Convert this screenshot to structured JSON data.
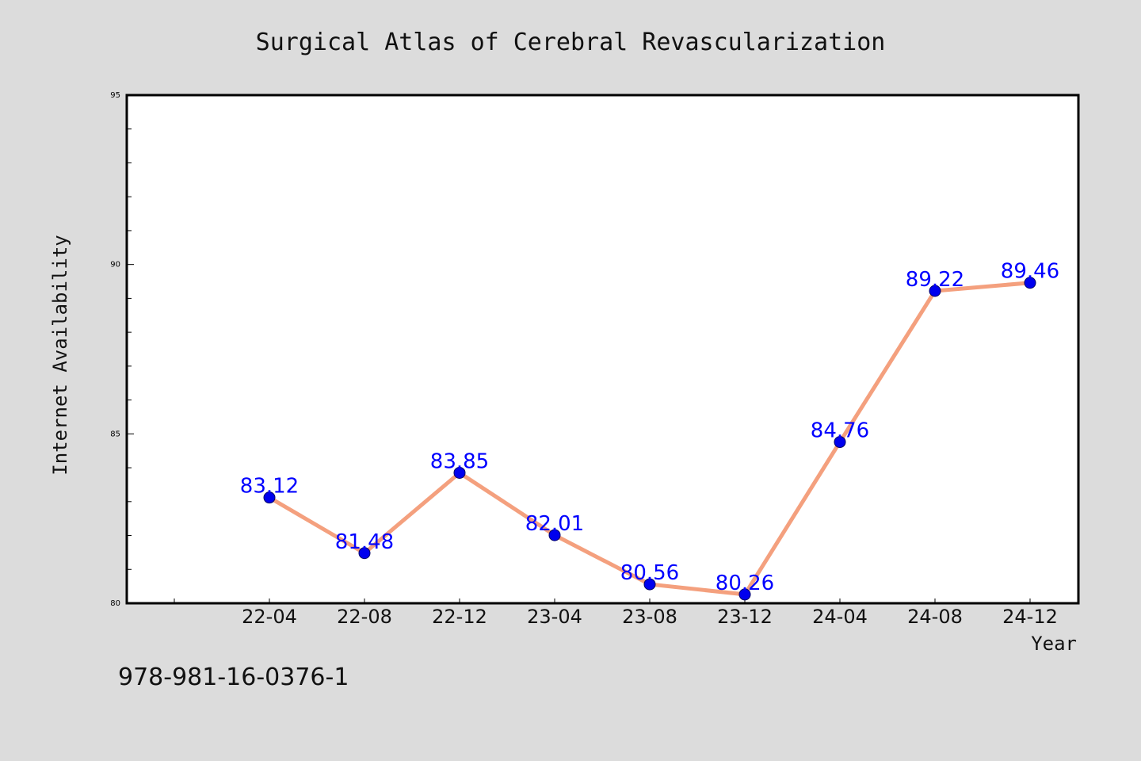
{
  "chart_data": {
    "type": "line",
    "title": "Surgical Atlas of Cerebral Revascularization",
    "xlabel": "Year",
    "ylabel": "Internet Availability",
    "categories": [
      "22-04",
      "22-08",
      "22-12",
      "23-04",
      "23-08",
      "23-12",
      "24-04",
      "24-08",
      "24-12"
    ],
    "series": [
      {
        "values": [
          83.12,
          81.48,
          83.85,
          82.01,
          80.56,
          80.26,
          84.76,
          89.22,
          89.46
        ],
        "labels": [
          "83.12",
          "81.48",
          "83.85",
          "82.01",
          "80.56",
          "80.26",
          "84.76",
          "89.22",
          "89.46"
        ]
      }
    ],
    "ylim": [
      80,
      95
    ],
    "yticks": [
      "80",
      "85",
      "90",
      "95"
    ],
    "grid": false,
    "legend": "none"
  },
  "footer": {
    "isbn": "978-981-16-0376-1"
  },
  "colors": {
    "background": "#dcdcdc",
    "plot_background": "#ffffff",
    "line": "#f4a07e",
    "marker": "#0000ee",
    "data_label": "#0000ff",
    "axis": "#000000"
  }
}
